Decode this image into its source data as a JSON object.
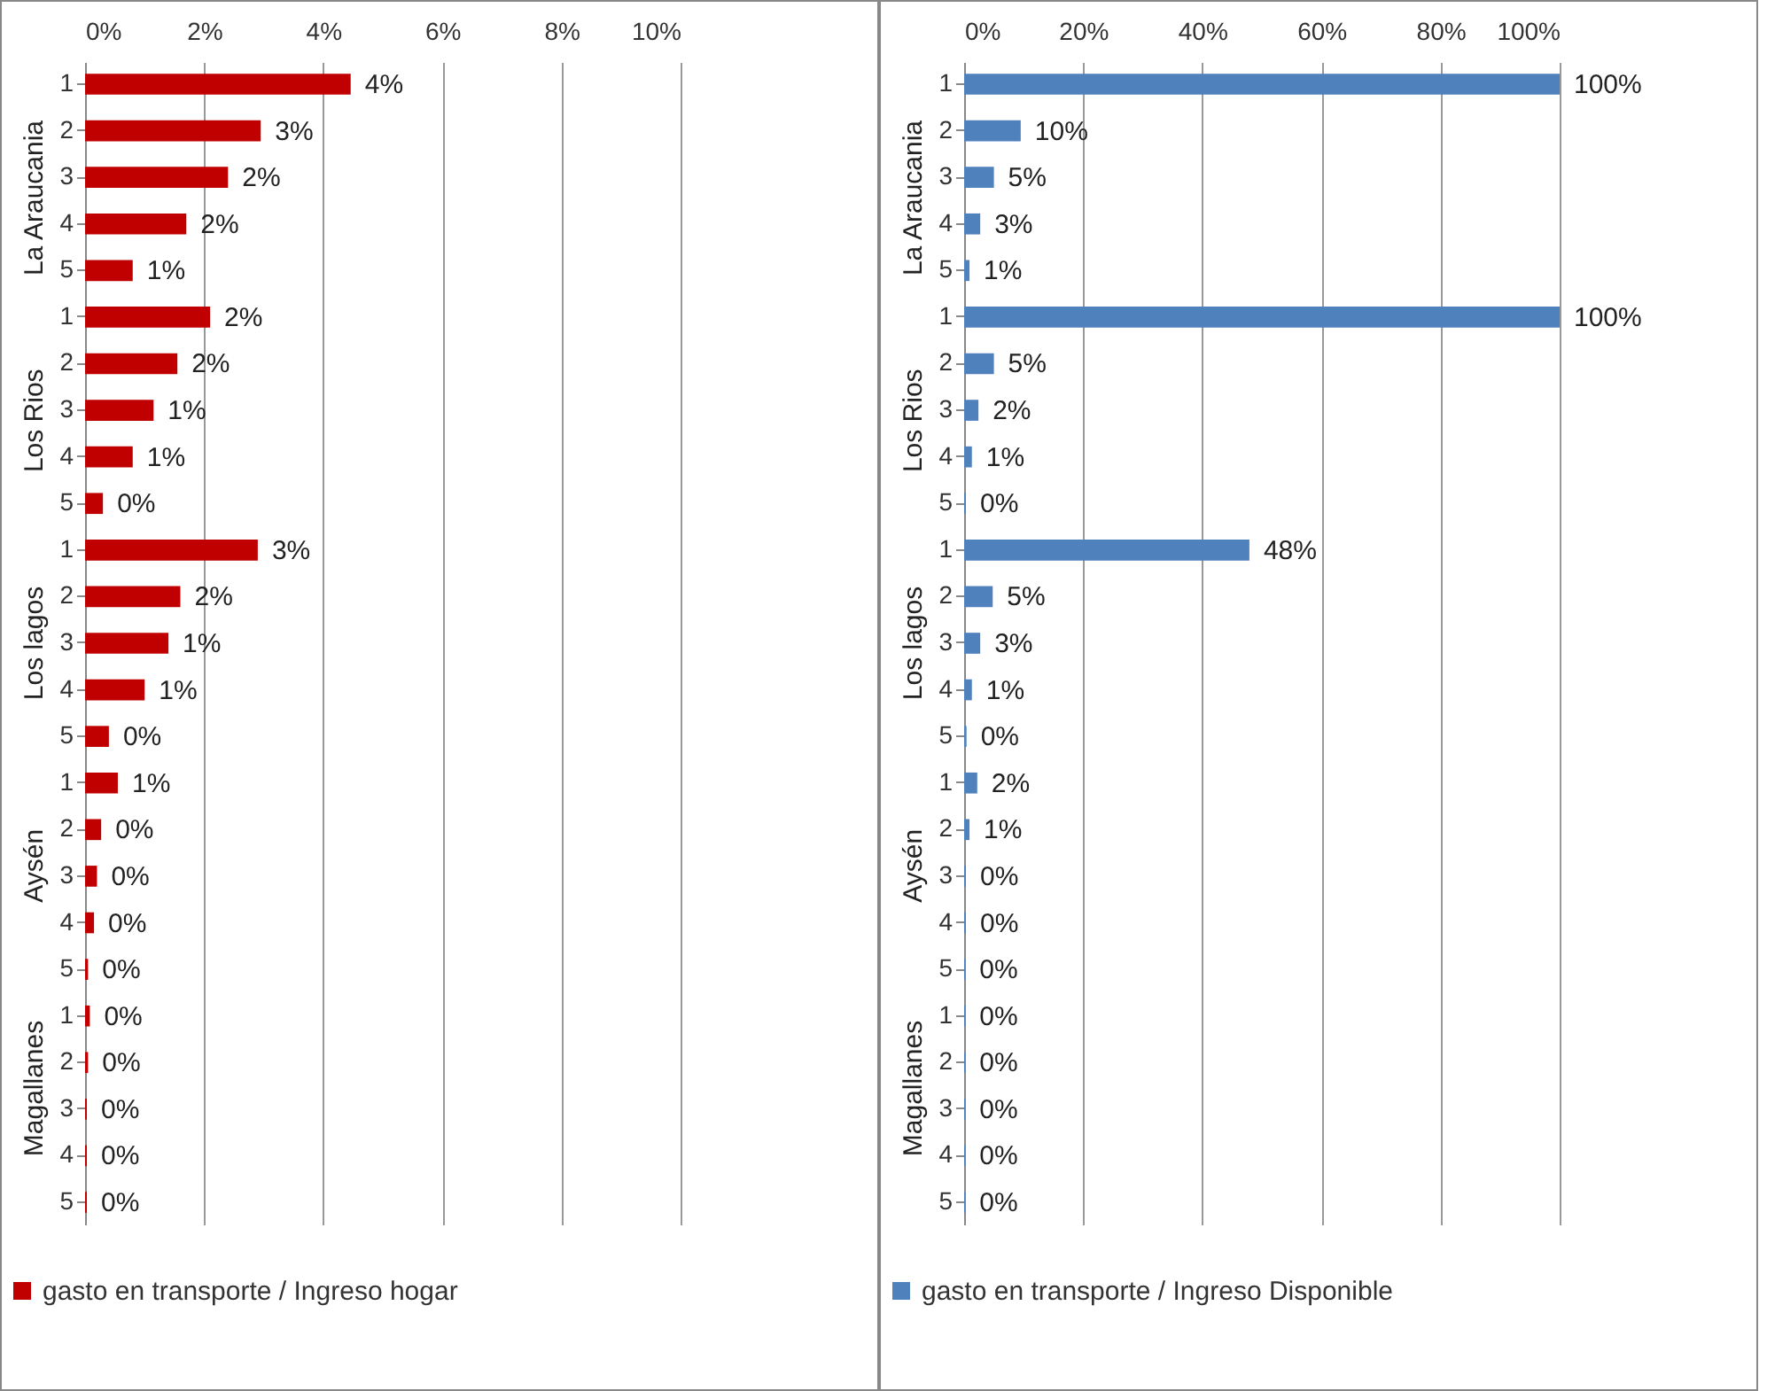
{
  "chart_data": [
    {
      "type": "bar",
      "orientation": "horizontal",
      "categories": [
        "1",
        "2",
        "3",
        "4",
        "5",
        "1",
        "2",
        "3",
        "4",
        "5",
        "1",
        "2",
        "3",
        "4",
        "5",
        "1",
        "2",
        "3",
        "4",
        "5",
        "1",
        "2",
        "3",
        "4",
        "5"
      ],
      "series": [
        {
          "name": "gasto en transporte / Ingreso hogar",
          "color": "#c00000",
          "values": [
            4.46,
            2.95,
            2.4,
            1.7,
            0.8,
            2.1,
            1.55,
            1.15,
            0.8,
            0.3,
            2.9,
            1.6,
            1.4,
            1.0,
            0.4,
            0.55,
            0.27,
            0.2,
            0.15,
            0.05,
            0.08,
            0.05,
            0.03,
            0.03,
            0.03
          ],
          "value_labels": [
            "4%",
            "3%",
            "2%",
            "2%",
            "1%",
            "2%",
            "2%",
            "1%",
            "1%",
            "0%",
            "3%",
            "2%",
            "1%",
            "1%",
            "0%",
            "1%",
            "0%",
            "0%",
            "0%",
            "0%",
            "0%",
            "0%",
            "0%",
            "0%",
            "0%"
          ]
        }
      ],
      "annotations": [
        "La Araucania",
        "Los Rios",
        "Los lagos",
        "Aysén",
        "Magallanes"
      ],
      "xlim": [
        0,
        10
      ],
      "xticks": [
        {
          "value": 0,
          "label": "0%"
        },
        {
          "value": 2,
          "label": "2%"
        },
        {
          "value": 4,
          "label": "4%"
        },
        {
          "value": 6,
          "label": "6%"
        },
        {
          "value": 8,
          "label": "8%"
        },
        {
          "value": 10,
          "label": "10%"
        }
      ],
      "grid": "x",
      "legend": "bottom"
    },
    {
      "type": "bar",
      "orientation": "horizontal",
      "categories": [
        "1",
        "2",
        "3",
        "4",
        "5",
        "1",
        "2",
        "3",
        "4",
        "5",
        "1",
        "2",
        "3",
        "4",
        "5",
        "1",
        "2",
        "3",
        "4",
        "5",
        "1",
        "2",
        "3",
        "4",
        "5"
      ],
      "series": [
        {
          "name": "gasto en transporte / Ingreso Disponible",
          "color": "#4f81bd",
          "values": [
            100,
            9.5,
            5,
            2.7,
            0.9,
            100,
            5,
            2.4,
            1.3,
            0.3,
            47.9,
            4.8,
            2.7,
            1.3,
            0.4,
            2.2,
            0.9,
            0.3,
            0.3,
            0.2,
            0.2,
            0.2,
            0.2,
            0.2,
            0.2
          ],
          "value_labels": [
            "100%",
            "10%",
            "5%",
            "3%",
            "1%",
            "100%",
            "5%",
            "2%",
            "1%",
            "0%",
            "48%",
            "5%",
            "3%",
            "1%",
            "0%",
            "2%",
            "1%",
            "0%",
            "0%",
            "0%",
            "0%",
            "0%",
            "0%",
            "0%",
            "0%"
          ]
        }
      ],
      "annotations": [
        "La Araucania",
        "Los Rios",
        "Los lagos",
        "Aysén",
        "Magallanes"
      ],
      "xlim": [
        0,
        100
      ],
      "xticks": [
        {
          "value": 0,
          "label": "0%"
        },
        {
          "value": 20,
          "label": "20%"
        },
        {
          "value": 40,
          "label": "40%"
        },
        {
          "value": 60,
          "label": "60%"
        },
        {
          "value": 80,
          "label": "80%"
        },
        {
          "value": 100,
          "label": "100%"
        }
      ],
      "grid": "x",
      "legend": "bottom"
    }
  ]
}
